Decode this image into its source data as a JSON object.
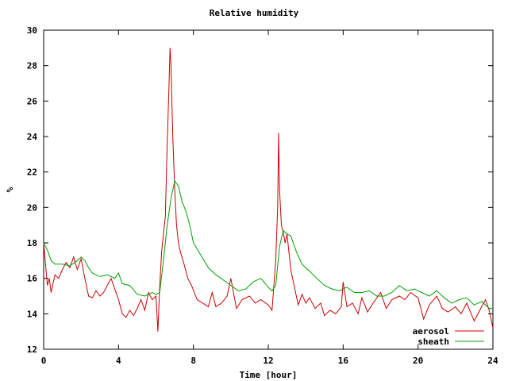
{
  "chart_data": {
    "type": "line",
    "title": "Relative humidity",
    "xlabel": "Time [hour]",
    "ylabel": "%",
    "xlim": [
      0,
      24
    ],
    "ylim": [
      12,
      30
    ],
    "xticks": [
      0,
      4,
      8,
      12,
      16,
      20,
      24
    ],
    "yticks": [
      12,
      14,
      16,
      18,
      20,
      22,
      24,
      26,
      28,
      30
    ],
    "grid": false,
    "legend": "bottom-right",
    "series": [
      {
        "name": "aerosol",
        "color": "#cc0000",
        "x": [
          0,
          0.2,
          0.3,
          0.4,
          0.5,
          0.6,
          0.8,
          1.0,
          1.2,
          1.4,
          1.6,
          1.8,
          2.0,
          2.2,
          2.4,
          2.6,
          2.8,
          3.0,
          3.2,
          3.4,
          3.6,
          3.8,
          4.0,
          4.2,
          4.4,
          4.6,
          4.8,
          5.0,
          5.2,
          5.4,
          5.6,
          5.8,
          6.0,
          6.1,
          6.2,
          6.3,
          6.4,
          6.5,
          6.6,
          6.7,
          6.75,
          6.8,
          6.9,
          7.0,
          7.1,
          7.2,
          7.3,
          7.5,
          7.7,
          7.9,
          8.2,
          8.5,
          8.8,
          9.0,
          9.2,
          9.5,
          9.8,
          10.0,
          10.3,
          10.6,
          11.0,
          11.3,
          11.6,
          12.0,
          12.2,
          12.4,
          12.5,
          12.55,
          12.6,
          12.7,
          12.8,
          12.9,
          13.0,
          13.2,
          13.4,
          13.6,
          13.8,
          14.0,
          14.2,
          14.5,
          14.8,
          15.0,
          15.3,
          15.6,
          15.9,
          16.0,
          16.2,
          16.5,
          16.8,
          17.0,
          17.3,
          17.6,
          18.0,
          18.3,
          18.6,
          19.0,
          19.3,
          19.6,
          20.0,
          20.3,
          20.6,
          21.0,
          21.3,
          21.6,
          22.0,
          22.3,
          22.6,
          23.0,
          23.3,
          23.6,
          23.8,
          24.0
        ],
        "values": [
          18.0,
          15.6,
          16.0,
          15.2,
          15.7,
          16.2,
          16.0,
          16.5,
          16.9,
          16.6,
          17.2,
          16.5,
          17.1,
          16.0,
          15.0,
          14.9,
          15.3,
          15.0,
          15.2,
          15.6,
          16.0,
          15.4,
          14.8,
          14.0,
          13.8,
          14.2,
          13.9,
          14.3,
          14.8,
          14.2,
          15.2,
          14.8,
          15.0,
          13.0,
          15.5,
          17.5,
          18.5,
          19.5,
          23.5,
          27.0,
          29.0,
          28.0,
          24.0,
          21.0,
          19.0,
          18.0,
          17.5,
          16.8,
          16.0,
          15.6,
          14.8,
          14.6,
          14.4,
          15.2,
          14.4,
          14.6,
          15.0,
          16.0,
          14.3,
          14.8,
          15.0,
          14.6,
          14.8,
          14.5,
          14.2,
          17.0,
          20.0,
          24.2,
          21.0,
          19.0,
          18.6,
          18.0,
          18.5,
          16.5,
          15.5,
          14.5,
          15.1,
          14.6,
          14.9,
          14.3,
          14.6,
          13.9,
          14.2,
          14.0,
          14.4,
          15.8,
          14.4,
          14.6,
          14.0,
          14.9,
          14.1,
          14.6,
          15.2,
          14.3,
          14.8,
          15.0,
          14.8,
          15.2,
          14.9,
          13.7,
          14.5,
          15.0,
          14.3,
          14.1,
          14.4,
          14.0,
          14.6,
          13.6,
          14.2,
          14.8,
          14.2,
          13.2
        ]
      },
      {
        "name": "sheath",
        "color": "#00a000",
        "x": [
          0,
          0.2,
          0.4,
          0.6,
          1.0,
          1.4,
          1.8,
          2.0,
          2.2,
          2.4,
          2.6,
          3.0,
          3.4,
          3.8,
          4.0,
          4.2,
          4.6,
          5.0,
          5.4,
          5.8,
          6.0,
          6.2,
          6.4,
          6.6,
          6.8,
          7.0,
          7.2,
          7.4,
          7.6,
          7.8,
          8.0,
          8.4,
          8.8,
          9.2,
          9.6,
          10.0,
          10.4,
          10.8,
          11.2,
          11.6,
          12.0,
          12.2,
          12.4,
          12.6,
          12.8,
          13.0,
          13.2,
          13.5,
          13.8,
          14.2,
          14.6,
          15.0,
          15.4,
          15.8,
          16.2,
          16.6,
          17.0,
          17.4,
          17.8,
          18.2,
          18.6,
          19.0,
          19.4,
          19.8,
          20.2,
          20.6,
          21.0,
          21.4,
          21.8,
          22.2,
          22.6,
          23.0,
          23.4,
          23.8,
          24.0
        ],
        "values": [
          18.0,
          17.6,
          17.0,
          16.8,
          16.8,
          16.7,
          17.0,
          17.2,
          17.0,
          16.6,
          16.3,
          16.1,
          16.2,
          16.0,
          16.3,
          15.7,
          15.6,
          15.1,
          15.0,
          15.2,
          15.1,
          15.2,
          17.0,
          19.0,
          20.5,
          21.5,
          21.2,
          20.3,
          19.8,
          19.0,
          18.0,
          17.3,
          16.6,
          16.2,
          15.9,
          15.6,
          15.3,
          15.4,
          15.8,
          16.0,
          15.5,
          15.3,
          15.6,
          17.8,
          18.7,
          18.5,
          18.4,
          17.5,
          16.8,
          16.4,
          16.0,
          15.6,
          15.4,
          15.3,
          15.5,
          15.2,
          15.2,
          15.3,
          15.0,
          15.0,
          15.2,
          15.6,
          15.3,
          15.4,
          15.2,
          15.0,
          15.3,
          14.9,
          14.6,
          14.8,
          14.9,
          14.5,
          14.7,
          14.3,
          14.3
        ]
      }
    ]
  }
}
